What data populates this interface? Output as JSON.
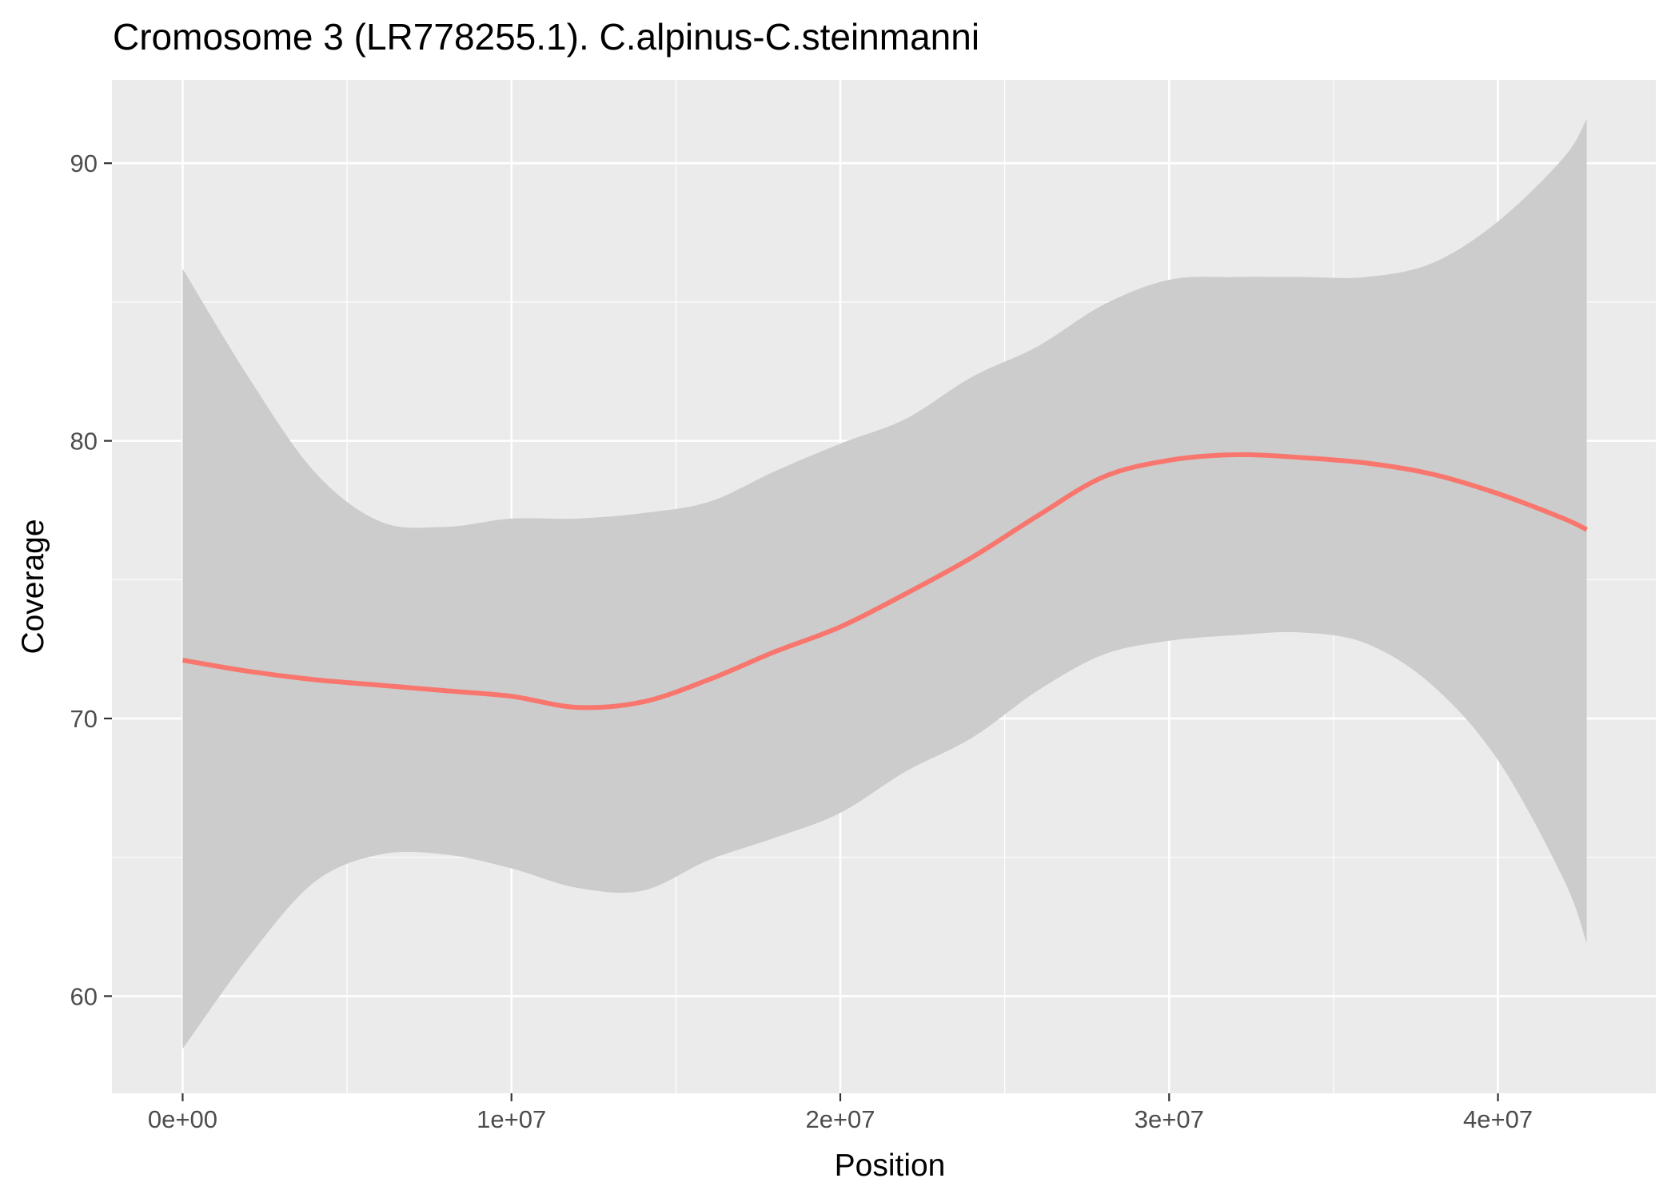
{
  "chart_data": {
    "type": "line",
    "title": "Cromosome 3 (LR778255.1). C.alpinus-C.steinmanni",
    "xlabel": "Position",
    "ylabel": "Coverage",
    "xlim": [
      -2150000,
      44800000
    ],
    "ylim": [
      56.5,
      93
    ],
    "x_ticks": [
      0,
      10000000,
      20000000,
      30000000,
      40000000
    ],
    "x_tick_labels": [
      "0e+00",
      "1e+07",
      "2e+07",
      "3e+07",
      "4e+07"
    ],
    "y_ticks": [
      60,
      70,
      80,
      90
    ],
    "y_tick_labels": [
      "60",
      "70",
      "80",
      "90"
    ],
    "grid": true,
    "background": "#ebebeb",
    "band_color": "#cccccc",
    "line_color": "#f8766d",
    "series": [
      {
        "x": [
          0,
          2000000,
          4000000,
          6000000,
          8000000,
          10000000,
          12000000,
          14000000,
          16000000,
          18000000,
          20000000,
          22000000,
          24000000,
          26000000,
          28000000,
          30000000,
          32000000,
          34000000,
          36000000,
          38000000,
          40000000,
          42000000,
          42700000
        ],
        "values": [
          72.1,
          71.7,
          71.4,
          71.2,
          71.0,
          70.8,
          70.4,
          70.6,
          71.4,
          72.4,
          73.3,
          74.5,
          75.8,
          77.3,
          78.7,
          79.3,
          79.5,
          79.4,
          79.2,
          78.8,
          78.1,
          77.2,
          76.8
        ],
        "ymin": [
          58.1,
          61.4,
          64.1,
          65.1,
          65.1,
          64.6,
          63.9,
          63.8,
          64.9,
          65.7,
          66.6,
          68.1,
          69.3,
          71.0,
          72.3,
          72.8,
          73.0,
          73.1,
          72.7,
          71.2,
          68.5,
          64.2,
          61.9
        ],
        "ymax": [
          86.2,
          82.3,
          78.9,
          77.1,
          76.9,
          77.2,
          77.2,
          77.4,
          77.8,
          78.9,
          79.9,
          80.8,
          82.3,
          83.4,
          84.9,
          85.8,
          85.9,
          85.9,
          85.9,
          86.4,
          87.9,
          90.2,
          91.6
        ]
      }
    ]
  }
}
